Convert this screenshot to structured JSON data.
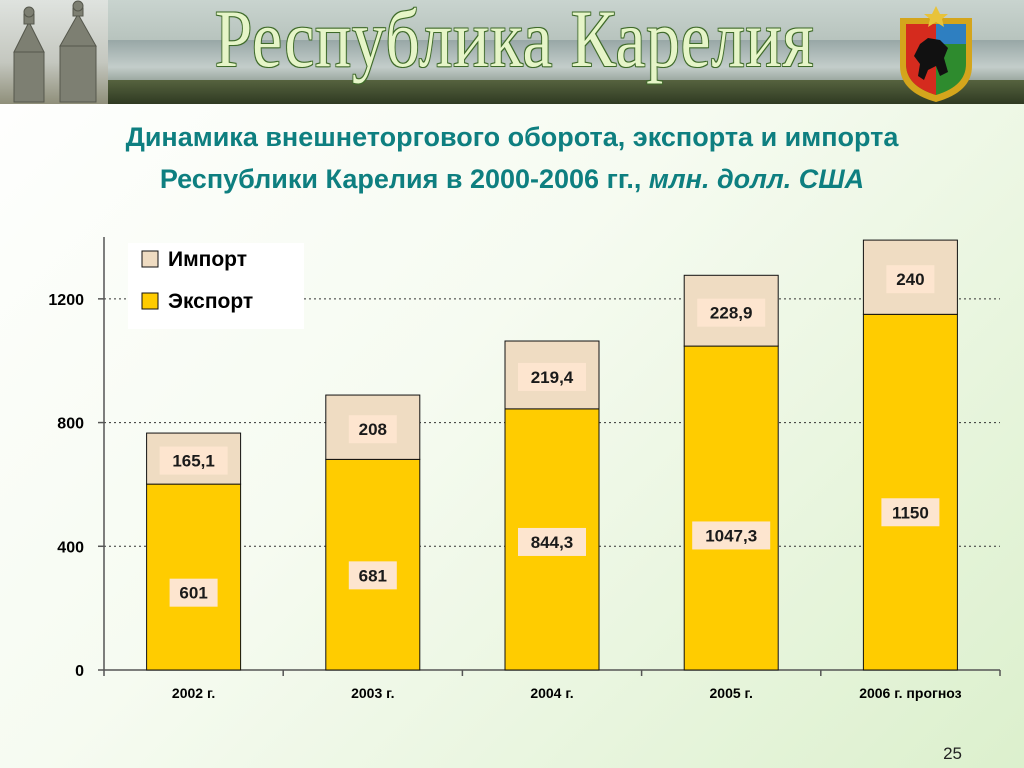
{
  "banner": {
    "title": "Республика Карелия"
  },
  "heading": {
    "line1": "Динамика внешнеторгового оборота, экспорта и импорта",
    "line2": "Республики Карелия в 2000-2006 гг.,",
    "unit": "млн. долл. США"
  },
  "colors": {
    "export": "#ffcc00",
    "import": "#efdcc2",
    "heading": "#0e7f80"
  },
  "chart_data": {
    "type": "bar",
    "stacked": true,
    "categories": [
      "2002 г.",
      "2003 г.",
      "2004 г.",
      "2005 г.",
      "2006 г. прогноз"
    ],
    "series": [
      {
        "name": "Экспорт",
        "values": [
          601,
          681,
          844.3,
          1047.3,
          1150
        ],
        "labels": [
          "601",
          "681",
          "844,3",
          "1047,3",
          "1150"
        ]
      },
      {
        "name": "Импорт",
        "values": [
          165.1,
          208,
          219.4,
          228.9,
          240
        ],
        "labels": [
          "165,1",
          "208",
          "219,4",
          "228,9",
          "240"
        ]
      }
    ],
    "yticks": [
      0,
      400,
      800,
      1200
    ],
    "ylim": [
      0,
      1400
    ],
    "grid": true,
    "legend": "top-left",
    "legend_order": [
      "Импорт",
      "Экспорт"
    ]
  },
  "page_number": "25"
}
